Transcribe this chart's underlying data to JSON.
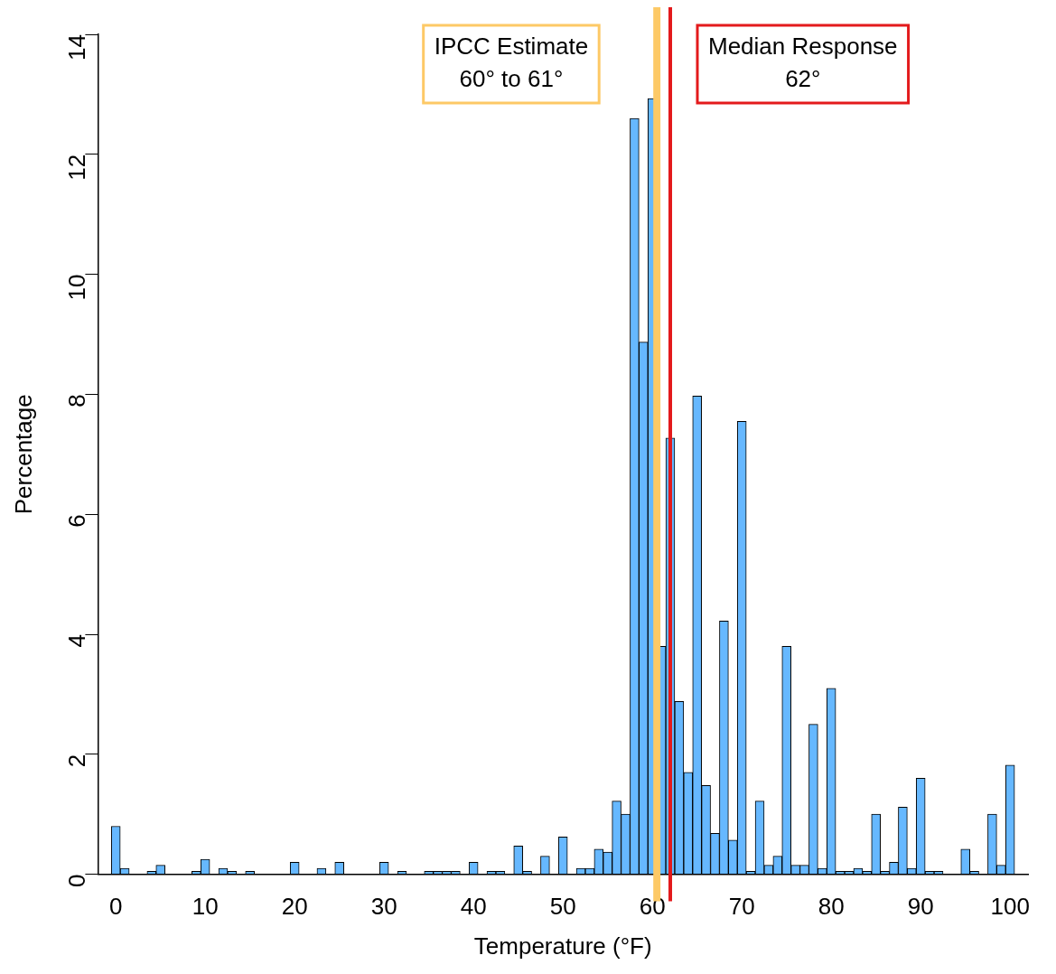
{
  "chart_data": {
    "type": "histogram",
    "xlabel": "Temperature (°F)",
    "ylabel": "Percentage",
    "bins": [
      -0.5,
      0.5,
      1.5,
      2.5,
      3.5,
      4.5,
      5.5,
      6.5,
      7.5,
      8.5,
      9.5,
      10.5,
      11.5,
      12.5,
      13.5,
      14.5,
      15.5,
      16.5,
      17.5,
      18.5,
      19.5,
      20.5,
      21.5,
      22.5,
      23.5,
      24.5,
      25.5,
      26.5,
      27.5,
      28.5,
      29.5,
      30.5,
      31.5,
      32.5,
      33.5,
      34.5,
      35.5,
      36.5,
      37.5,
      38.5,
      39.5,
      40.5,
      41.5,
      42.5,
      43.5,
      44.5,
      45.5,
      46.5,
      47.5,
      48.5,
      49.5,
      50.5,
      51.5,
      52.5,
      53.5,
      54.5,
      55.5,
      56.5,
      57.5,
      58.5,
      59.5,
      60.5,
      61.5,
      62.5,
      63.5,
      64.5,
      65.5,
      66.5,
      67.5,
      68.5,
      69.5,
      70.5,
      71.5,
      72.5,
      73.5,
      74.5,
      75.5,
      76.5,
      77.5,
      78.5,
      79.5,
      80.5,
      81.5,
      82.5,
      83.5,
      84.5,
      85.5,
      86.5,
      87.5,
      88.5,
      89.5,
      90.5,
      91.5,
      92.5,
      93.5,
      94.5,
      95.5,
      96.5,
      97.5,
      98.5,
      99.5,
      100.5
    ],
    "values": [
      0.8,
      0.1,
      0,
      0,
      0.05,
      0.15,
      0,
      0,
      0,
      0.05,
      0.25,
      0,
      0.1,
      0.05,
      0,
      0.05,
      0,
      0,
      0,
      0,
      0.2,
      0,
      0,
      0.1,
      0,
      0.2,
      0,
      0,
      0,
      0,
      0.2,
      0,
      0.05,
      0,
      0,
      0.05,
      0.05,
      0.05,
      0.05,
      0,
      0.2,
      0,
      0.05,
      0.05,
      0,
      0.47,
      0.05,
      0,
      0.3,
      0,
      0.62,
      0,
      0.1,
      0.1,
      0.42,
      0.37,
      1.22,
      1.0,
      12.6,
      8.87,
      12.93,
      3.8,
      7.27,
      2.88,
      1.7,
      7.97,
      1.48,
      0.68,
      4.22,
      0.57,
      7.55,
      0.05,
      1.22,
      0.15,
      0.3,
      3.8,
      0.15,
      0.15,
      2.5,
      0.1,
      3.1,
      0.05,
      0.05,
      0.1,
      0.05,
      1.0,
      0.05,
      0.2,
      1.12,
      0.1,
      1.6,
      0.05,
      0.05,
      0,
      0,
      0.42,
      0.05,
      0,
      1.0,
      0.15,
      1.82
    ],
    "color": "#66b8ff",
    "xlim": [
      -2,
      102
    ],
    "xticks": [
      0,
      10,
      20,
      30,
      40,
      50,
      60,
      70,
      80,
      90,
      100
    ],
    "ylim": [
      0,
      14
    ],
    "yticks": [
      0,
      2,
      4,
      6,
      8,
      10,
      12,
      14
    ],
    "bands": [
      {
        "axis": "x",
        "from": 60.1,
        "to": 60.9,
        "label": "IPCC Estimate\n60° to 61°",
        "color": "#fdc966"
      }
    ],
    "ref_lines": [
      {
        "axis": "x",
        "value": 62,
        "label": "Median Response\n62°",
        "color": "#e31a1c"
      }
    ],
    "grid": false,
    "legend": false
  }
}
